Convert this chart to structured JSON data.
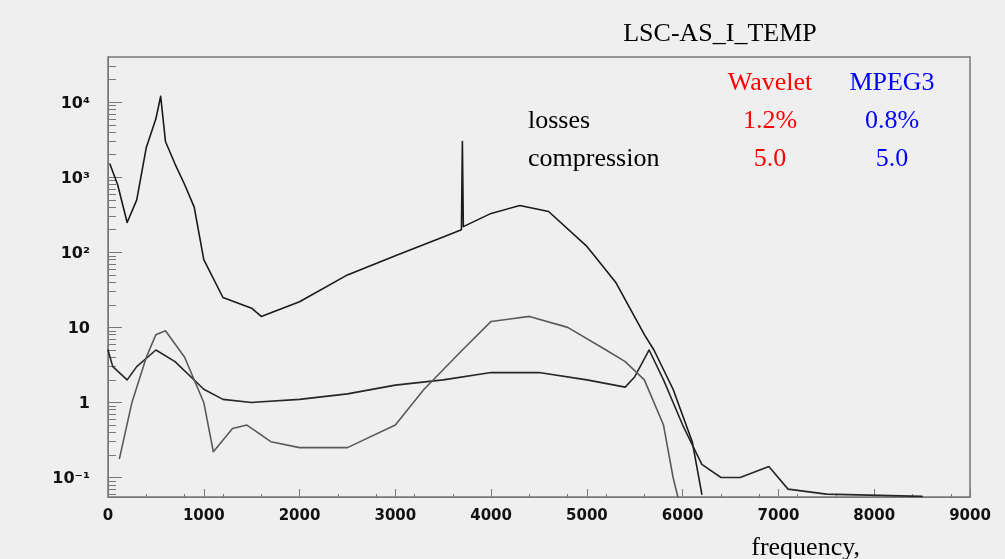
{
  "chart_data": {
    "type": "line",
    "title": "LSC-AS_I_TEMP",
    "xlabel": "frequency,",
    "annotations": [
      "Wavelet",
      "MPEG3",
      "losses",
      "1.2%",
      "0.8%",
      "compression",
      "5.0",
      "5.0"
    ],
    "xlim": [
      0,
      9000
    ],
    "xticks": [
      0,
      1000,
      2000,
      3000,
      4000,
      5000,
      6000,
      7000,
      8000,
      9000
    ],
    "ylim": [
      0.055,
      40000
    ],
    "yticks": [
      {
        "value": 0.1,
        "label": "10⁻¹"
      },
      1,
      10,
      {
        "value": 100,
        "label": "10²"
      },
      {
        "value": 1000,
        "label": "10³"
      },
      {
        "value": 10000,
        "label": "10⁴"
      }
    ],
    "log": "y",
    "grid": false,
    "marker": "none",
    "line_style": "solid",
    "series": [
      {
        "color": "#1a1a1a",
        "x": [
          20,
          100,
          200,
          300,
          400,
          500,
          550,
          600,
          700,
          800,
          900,
          1000,
          1200,
          1500,
          1600,
          2000,
          2500,
          3000,
          3500,
          3690,
          3700,
          3710,
          4000,
          4300,
          4600,
          5000,
          5300,
          5600,
          5700,
          5900,
          6100,
          6200
        ],
        "values": [
          1500,
          800,
          250,
          500,
          2500,
          6000,
          12000,
          3000,
          1500,
          800,
          400,
          80,
          25,
          18,
          14,
          22,
          50,
          90,
          160,
          200,
          3000,
          220,
          330,
          420,
          350,
          120,
          40,
          8,
          5,
          1.5,
          0.3,
          0.06
        ]
      },
      {
        "color": "#262626",
        "x": [
          0,
          50,
          200,
          300,
          500,
          700,
          1000,
          1200,
          1500,
          2000,
          2500,
          3000,
          3500,
          4000,
          4500,
          5000,
          5400,
          5500,
          5650,
          5800,
          6000,
          6200,
          6400,
          6600,
          6900,
          7100,
          7500,
          8500
        ],
        "values": [
          5,
          3,
          2,
          3,
          5,
          3.5,
          1.5,
          1.1,
          1,
          1.1,
          1.3,
          1.7,
          2,
          2.5,
          2.5,
          2,
          1.6,
          2.2,
          5,
          2,
          0.5,
          0.15,
          0.1,
          0.1,
          0.14,
          0.07,
          0.06,
          0.056
        ]
      },
      {
        "color": "#5a5a5a",
        "x": [
          120,
          250,
          400,
          500,
          600,
          800,
          1000,
          1100,
          1300,
          1450,
          1700,
          2000,
          2500,
          3000,
          3300,
          3700,
          4000,
          4400,
          4800,
          5200,
          5400,
          5600,
          5800,
          5900,
          5950
        ],
        "values": [
          0.18,
          1,
          4,
          8,
          9,
          4,
          1,
          0.22,
          0.45,
          0.5,
          0.3,
          0.25,
          0.25,
          0.5,
          1.5,
          5,
          12,
          14,
          10,
          5,
          3.5,
          2,
          0.5,
          0.1,
          0.055
        ]
      }
    ]
  }
}
